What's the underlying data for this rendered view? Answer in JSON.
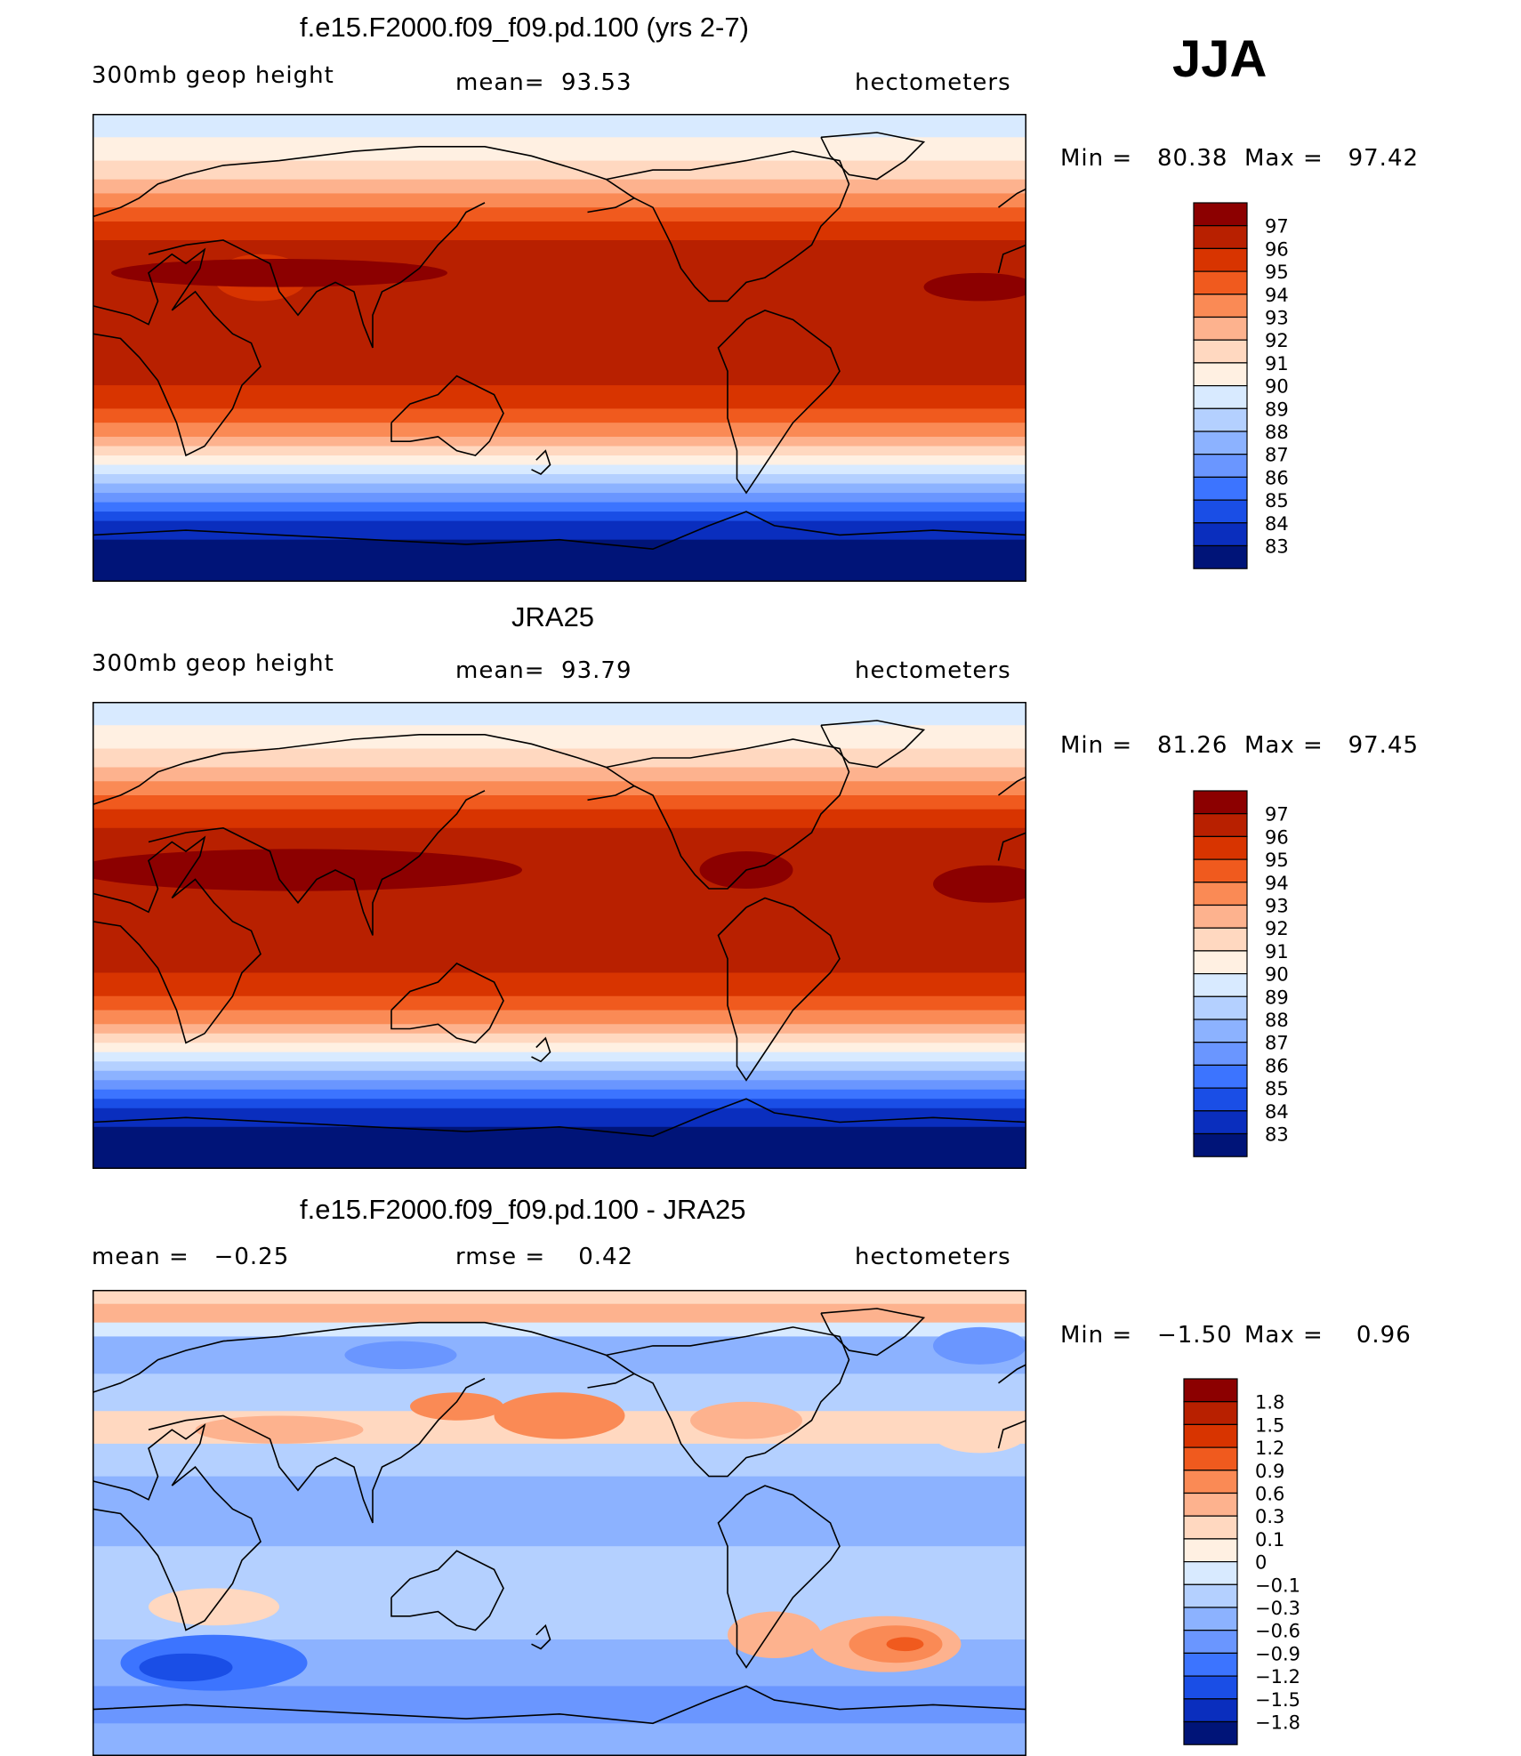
{
  "season": "JJA",
  "chart_data": [
    {
      "type": "heatmap",
      "title": "f.e15.F2000.f09_f09.pd.100 (yrs 2-7)",
      "left_label": "300mb geop height",
      "center_label": "mean=  93.53",
      "right_label": "hectometers",
      "mean": 93.53,
      "min": 80.38,
      "max": 97.42,
      "min_text": "Min =   80.38",
      "max_text": "Max =   97.42",
      "units": "hectometers",
      "levels": [
        "97",
        "96",
        "95",
        "94",
        "93",
        "92",
        "91",
        "90",
        "89",
        "88",
        "87",
        "86",
        "85",
        "84",
        "83"
      ],
      "colors": [
        "#8c0000",
        "#b82000",
        "#d83400",
        "#f05a1e",
        "#fa8a55",
        "#fdb28e",
        "#ffd8c0",
        "#fff0e2",
        "#d8eaff",
        "#b4d0ff",
        "#8cb2ff",
        "#6a96ff",
        "#3c74ff",
        "#1a4ee6",
        "#0a2ebe",
        "#001478"
      ],
      "colorbar_ticks_outer": false,
      "map_type": "global contour plot, latitude-banded, maximum in northern subtropics"
    },
    {
      "type": "heatmap",
      "title": "JRA25",
      "left_label": "300mb geop height",
      "center_label": "mean=  93.79",
      "right_label": "hectometers",
      "mean": 93.79,
      "min": 81.26,
      "max": 97.45,
      "min_text": "Min =   81.26",
      "max_text": "Max =   97.45",
      "units": "hectometers",
      "levels": [
        "97",
        "96",
        "95",
        "94",
        "93",
        "92",
        "91",
        "90",
        "89",
        "88",
        "87",
        "86",
        "85",
        "84",
        "83"
      ],
      "colors": [
        "#8c0000",
        "#b82000",
        "#d83400",
        "#f05a1e",
        "#fa8a55",
        "#fdb28e",
        "#ffd8c0",
        "#fff0e2",
        "#d8eaff",
        "#b4d0ff",
        "#8cb2ff",
        "#6a96ff",
        "#3c74ff",
        "#1a4ee6",
        "#0a2ebe",
        "#001478"
      ]
    },
    {
      "type": "heatmap",
      "title": "f.e15.F2000.f09_f09.pd.100 - JRA25",
      "left_label": "mean =   −0.25",
      "center_label": "rmse =    0.42",
      "right_label": "hectometers",
      "mean": -0.25,
      "rmse": 0.42,
      "min": -1.5,
      "max": 0.96,
      "min_text": "Min =   −1.50",
      "max_text": "Max =    0.96",
      "units": "hectometers",
      "levels": [
        "1.8",
        "1.5",
        "1.2",
        "0.9",
        "0.6",
        "0.3",
        "0.1",
        "0",
        "−0.1",
        "−0.3",
        "−0.6",
        "−0.9",
        "−1.2",
        "−1.5",
        "−1.8"
      ],
      "colors": [
        "#8c0000",
        "#b82000",
        "#d83400",
        "#f05a1e",
        "#fa8a55",
        "#fdb28e",
        "#ffd8c0",
        "#fff0e2",
        "#d8eaff",
        "#b4d0ff",
        "#8cb2ff",
        "#6a96ff",
        "#3c74ff",
        "#1a4ee6",
        "#0a2ebe",
        "#001478"
      ]
    }
  ]
}
